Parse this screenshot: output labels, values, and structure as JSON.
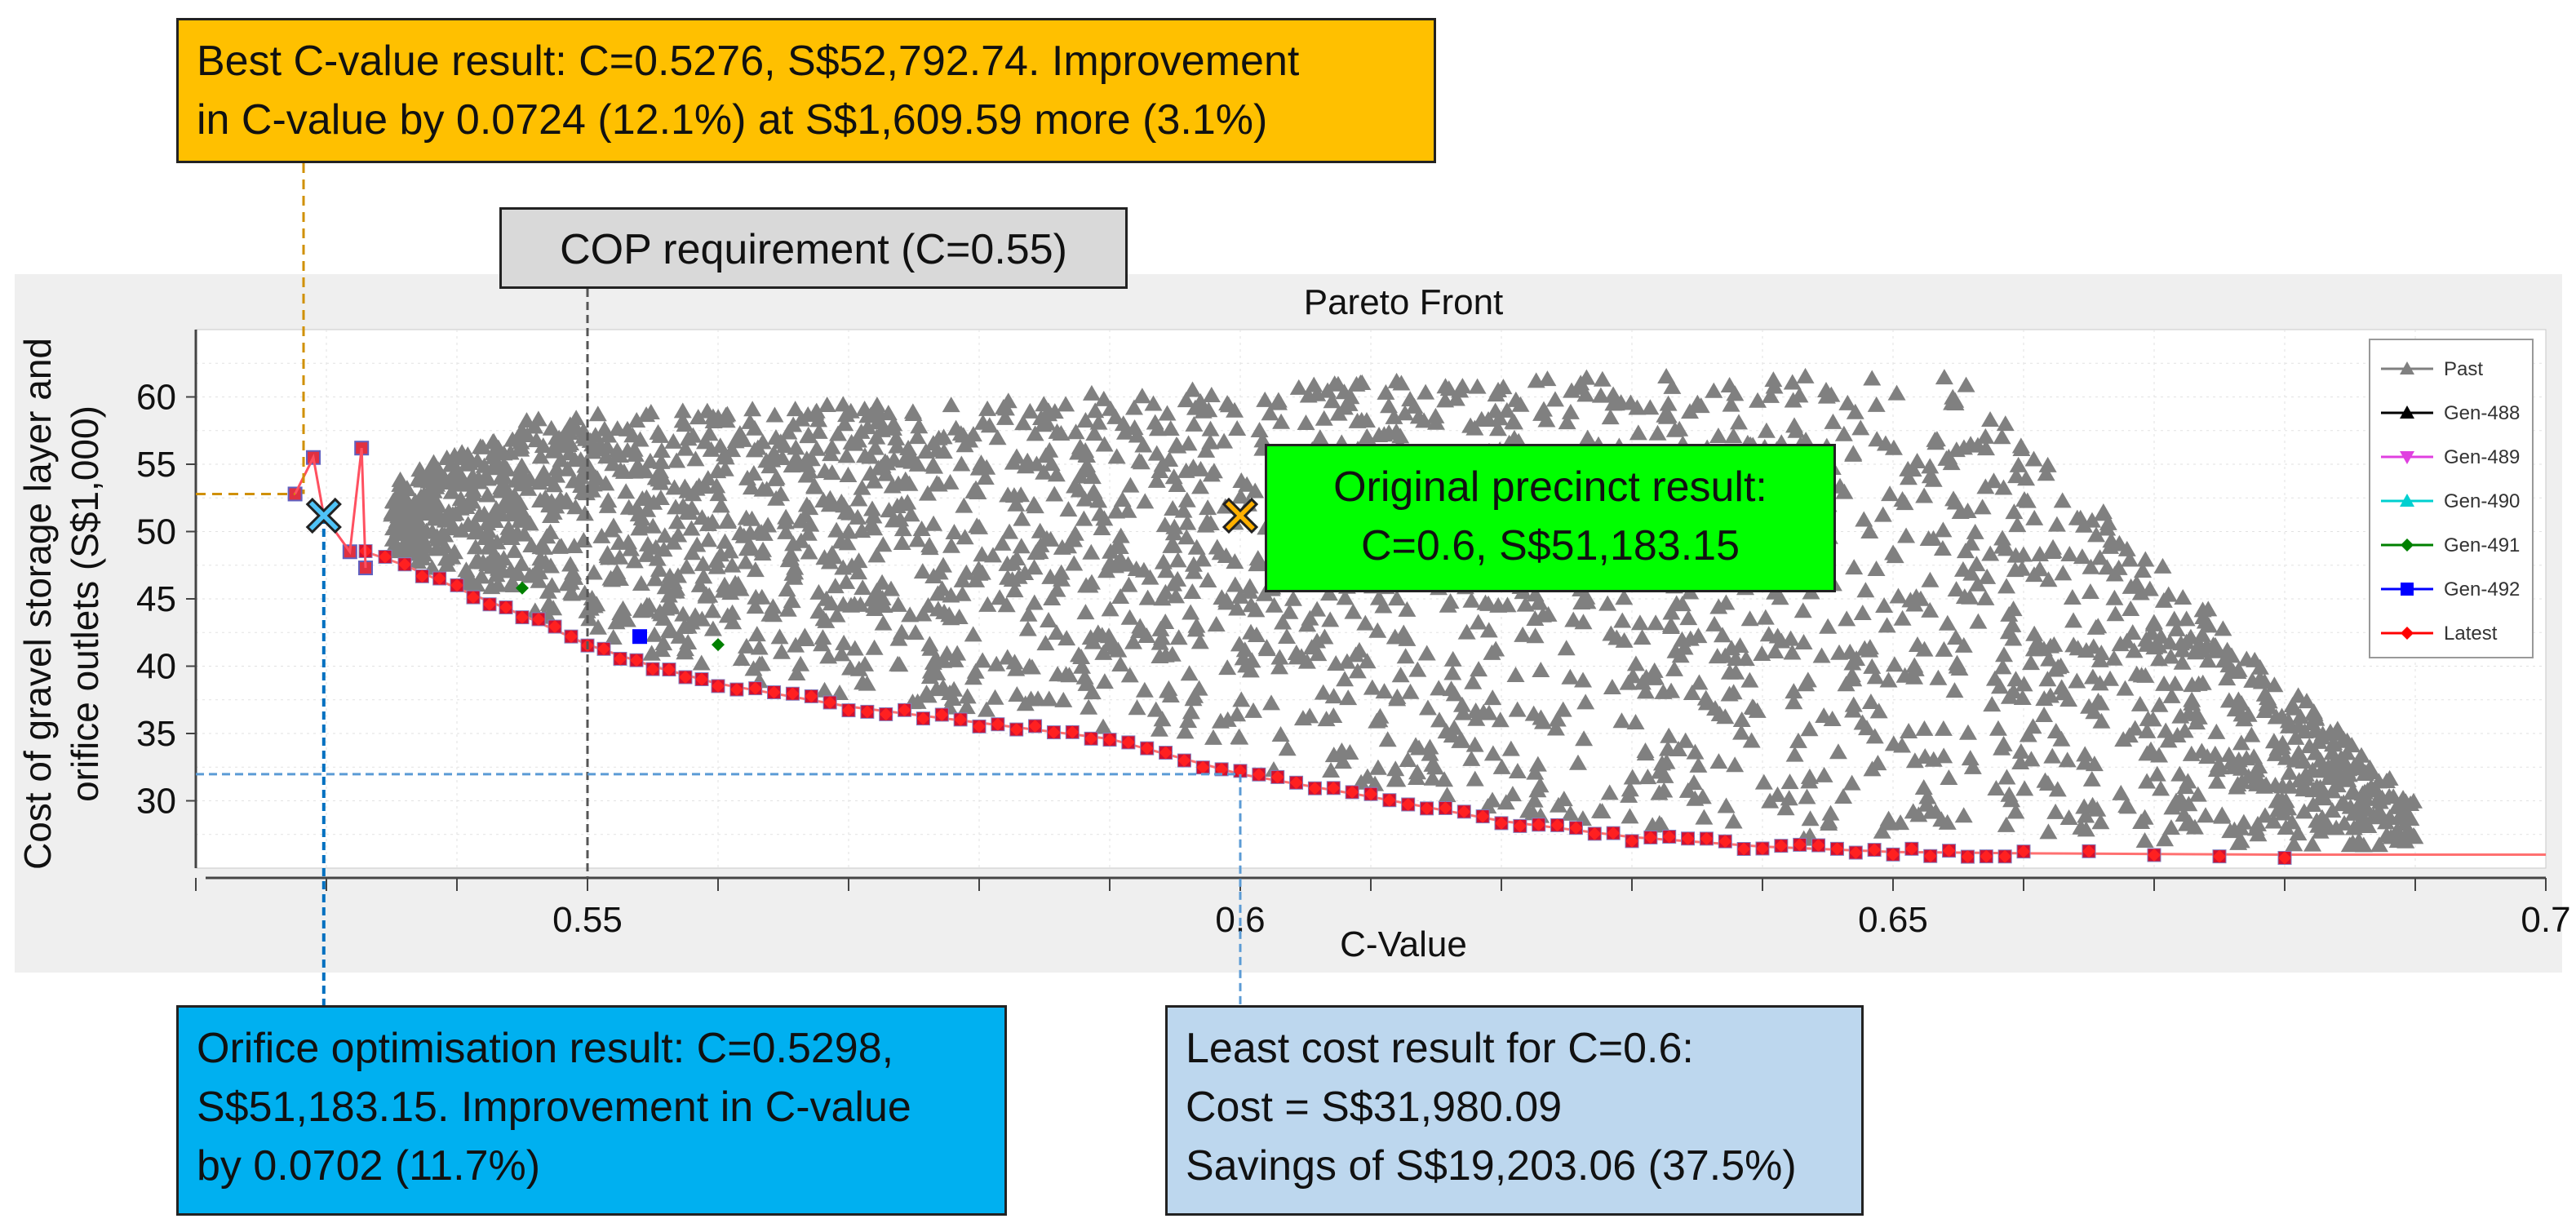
{
  "chart_data": {
    "type": "scatter",
    "title": "Pareto Front",
    "xlabel": "C-Value",
    "ylabel_lines": [
      "Cost of gravel storage layer and",
      "orifice outlets (S$1,000)"
    ],
    "xlim": [
      0.52,
      0.7
    ],
    "ylim": [
      25,
      65
    ],
    "xticks": [
      0.55,
      0.6,
      0.65,
      0.7
    ],
    "xtick_labels": [
      "0.55",
      "0.6",
      "0.65",
      "0.7"
    ],
    "yticks": [
      30,
      35,
      40,
      45,
      50,
      55,
      60
    ],
    "ytick_labels": [
      "30",
      "35",
      "40",
      "45",
      "50",
      "55",
      "60"
    ],
    "grid": true,
    "legend_position": "top-right",
    "series": [
      {
        "name": "Past",
        "color": "#808080",
        "marker": "triangle",
        "description": "dense cloud of past generations spanning C 0.533-0.69, cost 26-63"
      },
      {
        "name": "Gen-488",
        "color": "#000000",
        "marker": "triangle",
        "points": []
      },
      {
        "name": "Gen-489",
        "color": "#E040E0",
        "marker": "triangle-down",
        "points": []
      },
      {
        "name": "Gen-490",
        "color": "#00D0D0",
        "marker": "triangle",
        "points": []
      },
      {
        "name": "Gen-491",
        "color": "#008000",
        "marker": "diamond",
        "points": [
          [
            0.545,
            45.8
          ],
          [
            0.56,
            41.6
          ]
        ]
      },
      {
        "name": "Gen-492",
        "color": "#0000FF",
        "marker": "square",
        "points": [
          [
            0.554,
            42.2
          ]
        ]
      },
      {
        "name": "Latest",
        "color": "#FF0000",
        "marker": "diamond",
        "front": [
          [
            0.533,
            48.5
          ],
          [
            0.536,
            47.5
          ],
          [
            0.54,
            45.8
          ],
          [
            0.545,
            43.8
          ],
          [
            0.55,
            41.6
          ],
          [
            0.555,
            40.0
          ],
          [
            0.56,
            38.7
          ],
          [
            0.57,
            37.0
          ],
          [
            0.58,
            35.8
          ],
          [
            0.59,
            34.6
          ],
          [
            0.6,
            31.98
          ],
          [
            0.61,
            30.3
          ],
          [
            0.62,
            28.5
          ],
          [
            0.63,
            27.3
          ],
          [
            0.64,
            26.6
          ],
          [
            0.65,
            26.2
          ],
          [
            0.66,
            26.1
          ],
          [
            0.68,
            26.0
          ],
          [
            0.7,
            26.0
          ]
        ]
      }
    ],
    "highlighted_points": [
      {
        "name": "Best C-value result",
        "x": 0.5276,
        "y": 52.79,
        "marker": "square-red"
      },
      {
        "name": "Orifice optimisation result",
        "x": 0.5298,
        "y": 51.18,
        "marker": "x-cyan"
      },
      {
        "name": "Original precinct result",
        "x": 0.6,
        "y": 51.18,
        "marker": "x-orange"
      },
      {
        "name": "Least cost result for C=0.6",
        "x": 0.6,
        "y": 31.98
      }
    ],
    "reference_lines": [
      {
        "name": "COP requirement",
        "x": 0.55
      }
    ]
  },
  "annotations": {
    "best": [
      "Best C-value result: C=0.5276, S$52,792.74. Improvement",
      "in C-value by 0.0724 (12.1%) at S$1,609.59 more (3.1%)"
    ],
    "cop": "COP requirement (C=0.55)",
    "original": [
      "Original precinct result:",
      "C=0.6, S$51,183.15"
    ],
    "orifice": [
      "Orifice optimisation result: C=0.5298,",
      "S$51,183.15. Improvement in C-value",
      "by 0.0702 (11.7%)"
    ],
    "least_cost": [
      "Least cost result for C=0.6:",
      "Cost = S$31,980.09",
      "Savings of S$19,203.06 (37.5%)"
    ]
  },
  "colors": {
    "past": "#808080",
    "latest": "#FF0000",
    "best_box": "#FFC000",
    "cop_box": "#D9D9D9",
    "original_box": "#00FF00",
    "orifice_box": "#00B0F0",
    "least_cost_box": "#BDD7EE"
  }
}
